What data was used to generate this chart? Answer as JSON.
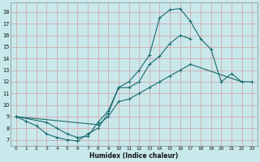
{
  "xlabel": "Humidex (Indice chaleur)",
  "bg_color": "#c8e8ec",
  "grid_color": "#b0d4d8",
  "line_color": "#1a6b6b",
  "xlim": [
    -0.5,
    23.5
  ],
  "ylim": [
    6.5,
    18.8
  ],
  "xticks": [
    0,
    1,
    2,
    3,
    4,
    5,
    6,
    7,
    8,
    9,
    10,
    11,
    12,
    13,
    14,
    15,
    16,
    17,
    18,
    19,
    20,
    21,
    22,
    23
  ],
  "yticks": [
    7,
    8,
    9,
    10,
    11,
    12,
    13,
    14,
    15,
    16,
    17,
    18
  ],
  "curve_arc": {
    "x": [
      0,
      3,
      4,
      5,
      6,
      7,
      8,
      9,
      10,
      11,
      12,
      13,
      14,
      15,
      16,
      17,
      18,
      19,
      20,
      21,
      22
    ],
    "y": [
      9.0,
      8.5,
      8.0,
      7.5,
      7.2,
      7.3,
      8.5,
      9.5,
      11.5,
      12.0,
      13.0,
      14.3,
      17.5,
      18.2,
      18.3,
      17.2,
      15.7,
      14.8,
      12.0,
      12.7,
      12.0
    ]
  },
  "curve_mid": {
    "x": [
      0,
      1,
      2,
      3,
      4,
      5,
      6,
      7,
      8,
      9,
      10,
      11,
      12,
      13,
      14,
      15,
      16,
      17
    ],
    "y": [
      9.0,
      8.6,
      8.2,
      7.5,
      7.2,
      7.0,
      6.9,
      7.5,
      8.0,
      9.3,
      11.5,
      11.5,
      12.0,
      13.5,
      14.2,
      15.3,
      16.0,
      15.7
    ]
  },
  "curve_low": {
    "x": [
      0,
      8,
      9,
      10,
      11,
      12,
      13,
      14,
      15,
      16,
      17,
      22,
      23
    ],
    "y": [
      9.0,
      8.3,
      9.0,
      10.3,
      10.5,
      11.0,
      11.5,
      12.0,
      12.5,
      13.0,
      13.5,
      12.0,
      12.0
    ]
  }
}
